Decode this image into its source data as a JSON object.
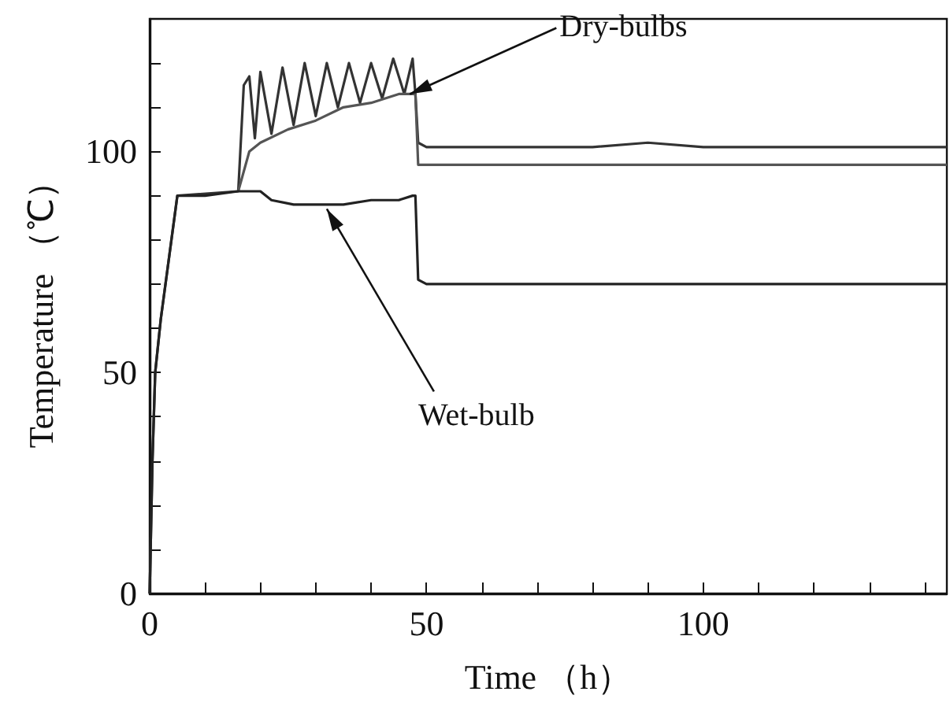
{
  "chart_data": {
    "type": "line",
    "xlabel": "Time （h）",
    "ylabel": "Temperature （℃）",
    "xlim": [
      0,
      144
    ],
    "ylim": [
      0,
      130
    ],
    "xticks": [
      0,
      {
        "value": 10,
        "label": null
      },
      {
        "value": 20,
        "label": null
      },
      {
        "value": 30,
        "label": null
      },
      {
        "value": 40,
        "label": null
      },
      50,
      {
        "value": 60,
        "label": null
      },
      {
        "value": 70,
        "label": null
      },
      {
        "value": 80,
        "label": null
      },
      {
        "value": 90,
        "label": null
      },
      100,
      {
        "value": 110,
        "label": null
      },
      {
        "value": 120,
        "label": null
      },
      {
        "value": 130,
        "label": null
      },
      {
        "value": 140,
        "label": null
      }
    ],
    "yticks": [
      0,
      {
        "value": 10,
        "label": null
      },
      {
        "value": 20,
        "label": null
      },
      {
        "value": 30,
        "label": null
      },
      {
        "value": 40,
        "label": null
      },
      50,
      {
        "value": 60,
        "label": null
      },
      {
        "value": 70,
        "label": null
      },
      {
        "value": 80,
        "label": null
      },
      {
        "value": 90,
        "label": null
      },
      100,
      {
        "value": 110,
        "label": null
      },
      {
        "value": 120,
        "label": null
      }
    ],
    "grid": false,
    "marker": "none",
    "line_style": "solid",
    "series": [
      {
        "color": "#333333",
        "x": [
          0,
          0.5,
          1,
          2,
          5,
          16,
          17,
          18,
          19,
          20,
          22,
          24,
          26,
          28,
          30,
          32,
          34,
          36,
          38,
          40,
          42,
          44,
          46,
          47.5,
          48,
          48.5,
          50,
          60,
          70,
          80,
          90,
          100,
          110,
          120,
          130,
          144
        ],
        "values": [
          0,
          30,
          50,
          62,
          90,
          91,
          115,
          117,
          103,
          118,
          104,
          119,
          106,
          120,
          108,
          120,
          110,
          120,
          111,
          120,
          112,
          121,
          113,
          121,
          113,
          102,
          101,
          101,
          101,
          101,
          102,
          101,
          101,
          101,
          101,
          101
        ]
      },
      {
        "color": "#555555",
        "x": [
          16,
          18,
          20,
          25,
          30,
          35,
          40,
          45,
          48,
          48.5,
          50,
          60,
          70,
          80,
          90,
          100,
          110,
          120,
          130,
          144
        ],
        "values": [
          91,
          100,
          102,
          105,
          107,
          110,
          111,
          113,
          113,
          97,
          97,
          97,
          97,
          97,
          97,
          97,
          97,
          97,
          97,
          97
        ]
      },
      {
        "color": "#222222",
        "x": [
          0,
          0.5,
          1,
          2,
          5,
          10,
          16,
          20,
          22,
          26,
          30,
          35,
          40,
          45,
          47.5,
          48,
          48.5,
          50,
          60,
          70,
          80,
          90,
          100,
          110,
          120,
          130,
          144
        ],
        "values": [
          0,
          30,
          50,
          62,
          90,
          90,
          91,
          91,
          89,
          88,
          88,
          88,
          89,
          89,
          90,
          90,
          71,
          70,
          70,
          70,
          70,
          70,
          70,
          70,
          70,
          70,
          70
        ]
      }
    ],
    "annotations": [
      {
        "text": "Dry-bulbs",
        "x": 47,
        "y": 113
      },
      {
        "text": "Wet-bulb",
        "x": 32,
        "y": 87
      }
    ]
  }
}
